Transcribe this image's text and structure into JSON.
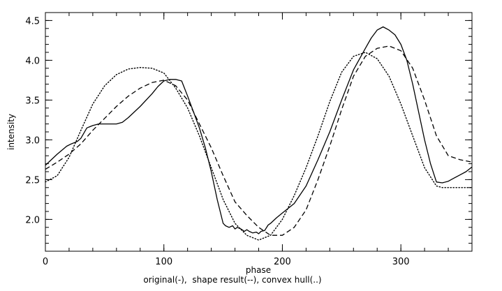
{
  "chart_data": {
    "type": "line",
    "title": "",
    "xlabel": "phase",
    "ylabel": "intensity",
    "caption": "original(-),  shape result(--), convex hull(..)",
    "xlim": [
      0,
      360
    ],
    "ylim": [
      1.6,
      4.6
    ],
    "x_ticks": [
      0,
      100,
      200,
      300
    ],
    "y_ticks": [
      2.0,
      2.5,
      3.0,
      3.5,
      4.0,
      4.5
    ],
    "x_tick_labels": [
      "0",
      "100",
      "200",
      "300"
    ],
    "y_tick_labels": [
      "2.0",
      "2.5",
      "3.0",
      "3.5",
      "4.0",
      "4.5"
    ],
    "grid": false,
    "legend": "none",
    "series": [
      {
        "style": "solid",
        "x": [
          0,
          10,
          18,
          22,
          27,
          30,
          35,
          40,
          45,
          50,
          55,
          60,
          65,
          70,
          80,
          90,
          95,
          100,
          105,
          110,
          115,
          120,
          125,
          130,
          135,
          140,
          145,
          150,
          152,
          155,
          158,
          160,
          162,
          165,
          168,
          170,
          172,
          175,
          178,
          180,
          182,
          185,
          188,
          190,
          195,
          200,
          210,
          220,
          230,
          240,
          250,
          260,
          270,
          275,
          280,
          285,
          290,
          295,
          300,
          305,
          310,
          315,
          320,
          325,
          330,
          335,
          340,
          345,
          350,
          355,
          360
        ],
        "y": [
          2.68,
          2.82,
          2.92,
          2.95,
          2.98,
          3.02,
          3.15,
          3.18,
          3.2,
          3.2,
          3.2,
          3.2,
          3.22,
          3.28,
          3.42,
          3.58,
          3.67,
          3.74,
          3.76,
          3.76,
          3.74,
          3.55,
          3.35,
          3.15,
          2.9,
          2.6,
          2.25,
          1.95,
          1.92,
          1.9,
          1.92,
          1.88,
          1.9,
          1.88,
          1.85,
          1.87,
          1.85,
          1.83,
          1.84,
          1.82,
          1.85,
          1.86,
          1.93,
          1.95,
          2.02,
          2.08,
          2.2,
          2.42,
          2.75,
          3.1,
          3.5,
          3.88,
          4.15,
          4.28,
          4.38,
          4.42,
          4.38,
          4.32,
          4.2,
          4.0,
          3.7,
          3.35,
          3.0,
          2.7,
          2.47,
          2.46,
          2.48,
          2.52,
          2.56,
          2.6,
          2.66
        ]
      },
      {
        "style": "dashed",
        "x": [
          0,
          10,
          20,
          30,
          40,
          50,
          60,
          70,
          80,
          90,
          100,
          110,
          120,
          130,
          140,
          150,
          160,
          170,
          180,
          190,
          200,
          210,
          220,
          230,
          240,
          250,
          260,
          270,
          280,
          290,
          300,
          310,
          320,
          330,
          340,
          350,
          360
        ],
        "y": [
          2.63,
          2.72,
          2.82,
          2.95,
          3.12,
          3.27,
          3.42,
          3.55,
          3.65,
          3.72,
          3.75,
          3.68,
          3.5,
          3.2,
          2.9,
          2.55,
          2.22,
          2.05,
          1.9,
          1.8,
          1.8,
          1.9,
          2.12,
          2.5,
          2.92,
          3.38,
          3.8,
          4.05,
          4.15,
          4.18,
          4.12,
          3.9,
          3.5,
          3.05,
          2.8,
          2.75,
          2.72
        ]
      },
      {
        "style": "dotted",
        "x": [
          0,
          10,
          20,
          30,
          40,
          50,
          60,
          70,
          80,
          90,
          100,
          110,
          120,
          130,
          140,
          150,
          160,
          170,
          180,
          190,
          200,
          210,
          220,
          230,
          240,
          250,
          260,
          270,
          280,
          290,
          300,
          310,
          320,
          330,
          335,
          340,
          350,
          360
        ],
        "y": [
          2.47,
          2.55,
          2.78,
          3.12,
          3.45,
          3.68,
          3.82,
          3.89,
          3.91,
          3.9,
          3.84,
          3.65,
          3.4,
          3.05,
          2.65,
          2.25,
          1.95,
          1.8,
          1.74,
          1.8,
          2.0,
          2.3,
          2.65,
          3.05,
          3.48,
          3.85,
          4.05,
          4.1,
          4.02,
          3.8,
          3.45,
          3.05,
          2.65,
          2.42,
          2.4,
          2.4,
          2.4,
          2.4
        ]
      }
    ]
  }
}
